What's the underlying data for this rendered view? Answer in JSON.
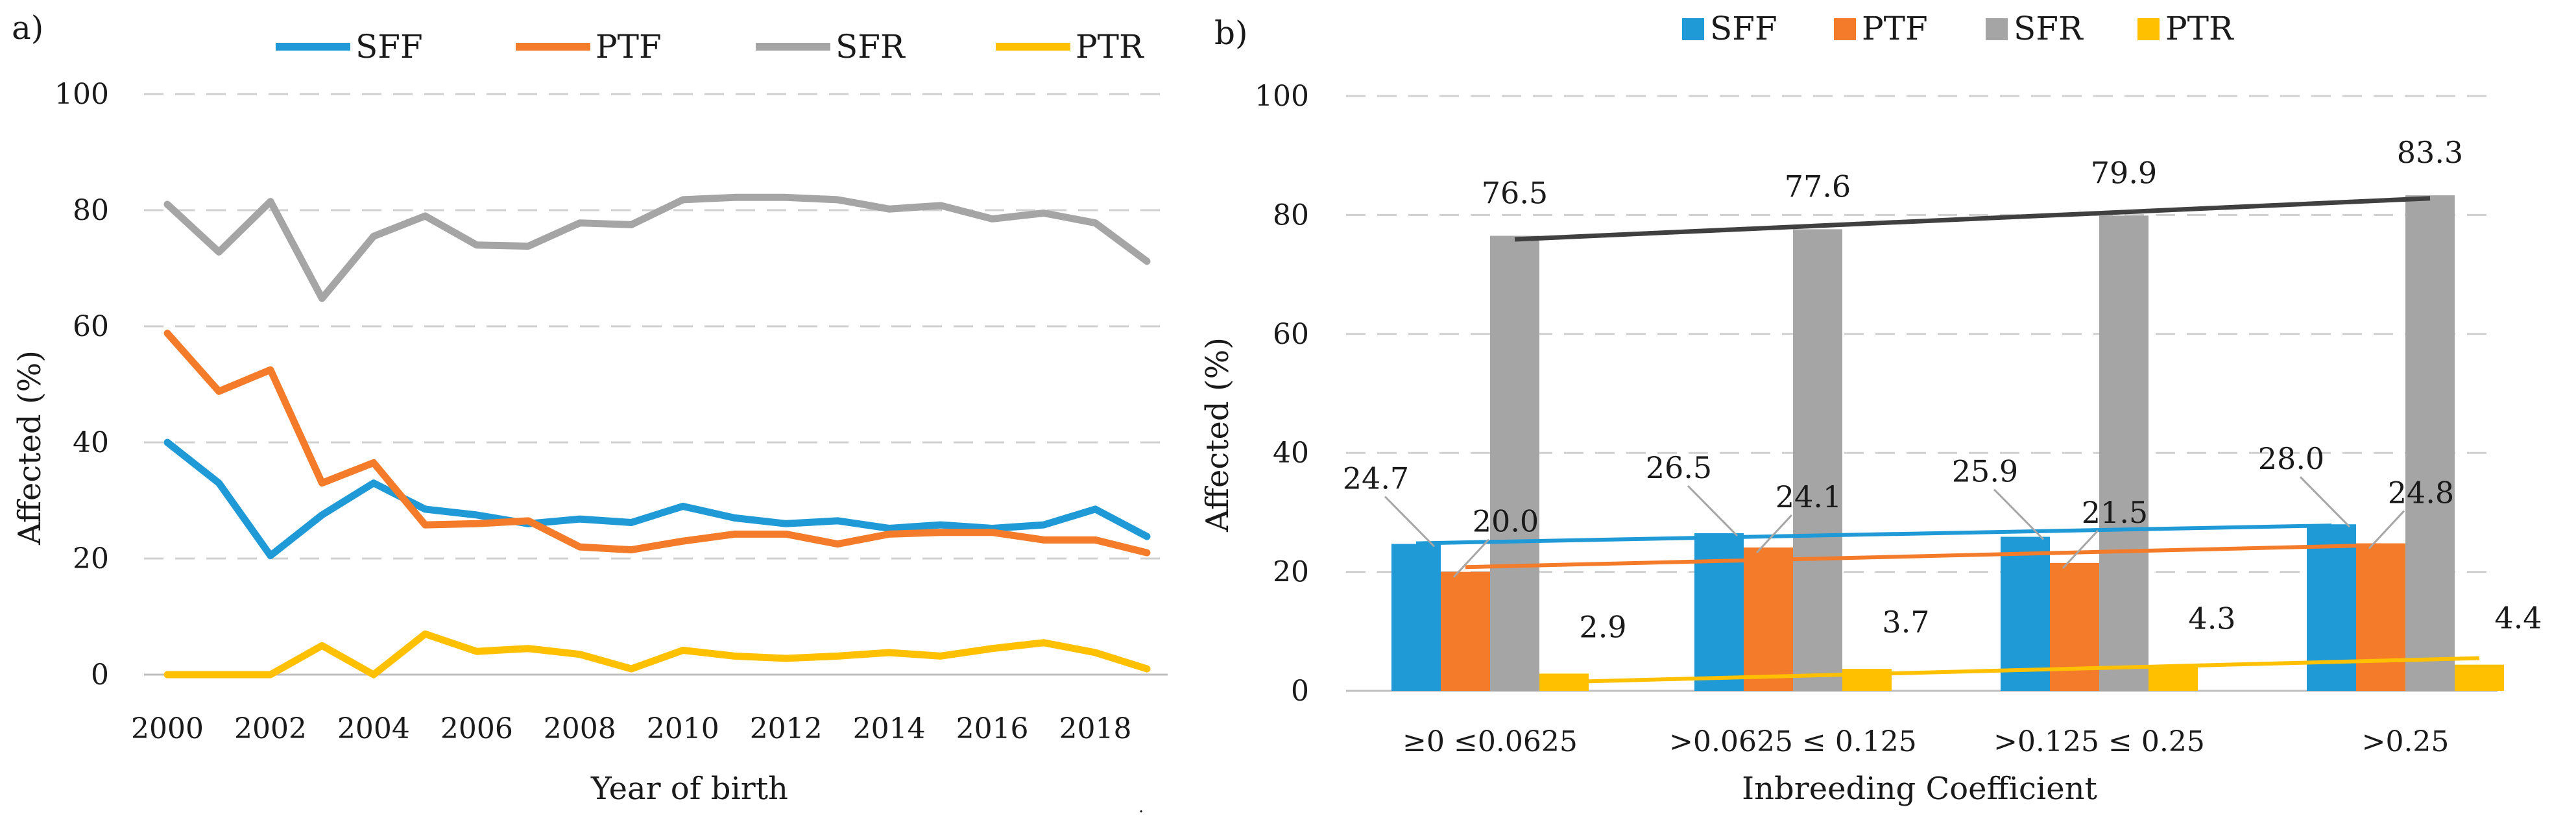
{
  "colors": {
    "SFF": "#1f9ad6",
    "PTF": "#f47b2a",
    "SFR": "#a5a5a5",
    "PTR": "#ffc000",
    "grid": "#d0d0d0",
    "trend_SFR": "#404040"
  },
  "chart_data": [
    {
      "panel_label": "a)",
      "type": "line",
      "title": "",
      "xlabel": "Year of birth",
      "ylabel": "Affected (%)",
      "ylim": [
        0,
        100
      ],
      "yticks": [
        "0",
        "20",
        "40",
        "60",
        "80",
        "100"
      ],
      "xticks": [
        "2000",
        "2002",
        "2004",
        "2006",
        "2008",
        "2010",
        "2012",
        "2014",
        "2016",
        "2018"
      ],
      "x": [
        2000,
        2001,
        2002,
        2003,
        2004,
        2005,
        2006,
        2007,
        2008,
        2009,
        2010,
        2011,
        2012,
        2013,
        2014,
        2015,
        2016,
        2017,
        2018,
        2019
      ],
      "legend": [
        "SFF",
        "PTF",
        "SFR",
        "PTR"
      ],
      "legend_position": "top",
      "grid": "horizontal dashed",
      "series": [
        {
          "name": "SFF",
          "values": [
            40.0,
            33.0,
            20.5,
            27.5,
            33.0,
            28.5,
            27.5,
            26.0,
            26.8,
            26.2,
            29.0,
            27.0,
            26.0,
            26.5,
            25.2,
            25.8,
            25.2,
            25.8,
            28.5,
            23.8
          ]
        },
        {
          "name": "PTF",
          "values": [
            58.8,
            48.8,
            52.5,
            33.0,
            36.5,
            25.8,
            26.0,
            26.5,
            22.0,
            21.5,
            23.0,
            24.2,
            24.2,
            22.5,
            24.2,
            24.5,
            24.5,
            23.2,
            23.2,
            21.0
          ]
        },
        {
          "name": "SFR",
          "values": [
            81.0,
            72.8,
            81.5,
            64.8,
            75.5,
            79.0,
            74.0,
            73.8,
            77.8,
            77.5,
            81.8,
            82.2,
            82.2,
            81.8,
            80.2,
            80.8,
            78.5,
            79.5,
            77.8,
            71.2
          ]
        },
        {
          "name": "PTR",
          "values": [
            0.0,
            0.0,
            0.0,
            5.0,
            0.0,
            7.0,
            4.0,
            4.5,
            3.5,
            1.0,
            4.2,
            3.2,
            2.8,
            3.2,
            3.8,
            3.2,
            4.5,
            5.5,
            3.8,
            1.0
          ]
        }
      ]
    },
    {
      "panel_label": "b)",
      "type": "bar",
      "title": "",
      "xlabel": "Inbreeding Coefficient",
      "ylabel": "Affected (%)",
      "ylim": [
        0,
        100
      ],
      "yticks": [
        "0",
        "20",
        "40",
        "60",
        "80",
        "100"
      ],
      "categories": [
        "≥0 ≤0.0625",
        ">0.0625 ≤ 0.125",
        ">0.125 ≤ 0.25",
        ">0.25"
      ],
      "legend": [
        "SFF",
        "PTF",
        "SFR",
        "PTR"
      ],
      "legend_position": "top",
      "grid": "horizontal dashed",
      "series": [
        {
          "name": "SFF",
          "values": [
            24.7,
            26.5,
            25.9,
            28.0
          ],
          "labels": [
            "24.7",
            "26.5",
            "25.9",
            "28.0"
          ]
        },
        {
          "name": "PTF",
          "values": [
            20.0,
            24.1,
            21.5,
            24.8
          ],
          "labels": [
            "20.0",
            "24.1",
            "21.5",
            "24.8"
          ]
        },
        {
          "name": "SFR",
          "values": [
            76.5,
            77.6,
            79.9,
            83.3
          ],
          "labels": [
            "76.5",
            "77.6",
            "79.9",
            "83.3"
          ]
        },
        {
          "name": "PTR",
          "values": [
            2.9,
            3.7,
            4.3,
            4.4
          ],
          "labels": [
            "2.9",
            "3.7",
            "4.3",
            "4.4"
          ]
        }
      ],
      "trendlines": [
        {
          "series": "SFF",
          "start": 24.8,
          "end": 27.8
        },
        {
          "series": "PTF",
          "start": 20.8,
          "end": 24.5
        },
        {
          "series": "SFR",
          "start": 75.9,
          "end": 82.8
        },
        {
          "series": "PTR",
          "start": 1.5,
          "end": 5.5
        }
      ]
    }
  ]
}
